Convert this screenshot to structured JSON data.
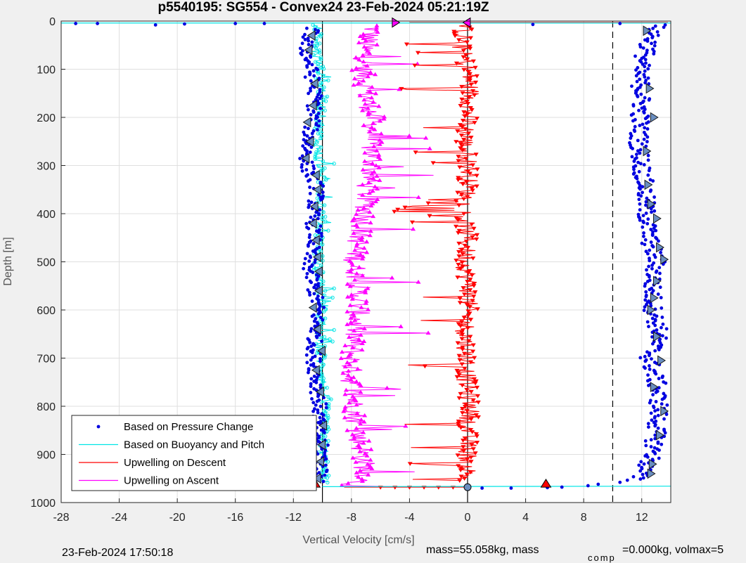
{
  "chart_data": {
    "type": "scatter",
    "title": "p5540195: SG554 - Convex24 23-Feb-2024 05:21:19Z",
    "xlabel": "Vertical Velocity [cm/s]",
    "ylabel": "Depth [m]",
    "xlim": [
      -28,
      14
    ],
    "ylim": [
      0,
      1000
    ],
    "y_reversed": true,
    "grid": true,
    "xticks": [
      "-28",
      "-24",
      "-20",
      "-16",
      "-12",
      "-8",
      "-4",
      "0",
      "4",
      "8",
      "12"
    ],
    "yticks": [
      "0",
      "100",
      "200",
      "300",
      "400",
      "500",
      "600",
      "700",
      "800",
      "900",
      "1000"
    ],
    "reference_lines": {
      "solid_x": [
        -10,
        0
      ],
      "dashed_x": [
        10
      ]
    },
    "legend_location": "bottom-left",
    "series": [
      {
        "name": "Based on Pressure Change",
        "style": "dots",
        "color": "#0000e0",
        "descent": {
          "depth": [
            5,
            50,
            100,
            150,
            200,
            250,
            300,
            350,
            400,
            450,
            500,
            550,
            600,
            650,
            700,
            750,
            800,
            850,
            900,
            950
          ],
          "velocity": [
            -10.5,
            -11.2,
            -10.8,
            -10.5,
            -10.6,
            -11.0,
            -11.1,
            -10.3,
            -10.7,
            -10.5,
            -11.0,
            -10.6,
            -10.3,
            -10.5,
            -10.6,
            -10.4,
            -10.2,
            -10.3,
            -10.0,
            -10.1
          ]
        },
        "ascent": {
          "depth": [
            960,
            940,
            900,
            850,
            800,
            750,
            700,
            650,
            600,
            550,
            500,
            450,
            400,
            350,
            300,
            250,
            200,
            150,
            100,
            50,
            10
          ],
          "velocity": [
            11.0,
            12.0,
            12.8,
            13.0,
            13.2,
            13.0,
            12.5,
            13.2,
            12.8,
            12.7,
            13.0,
            12.5,
            12.3,
            12.2,
            12.0,
            11.8,
            11.9,
            12.0,
            11.8,
            12.5,
            13.0
          ]
        },
        "surface": {
          "depth": [
            5,
            5,
            8,
            6,
            5,
            5,
            7,
            5
          ],
          "velocity": [
            -27,
            -25.5,
            -21.5,
            -19.5,
            -16,
            -14,
            4.5,
            10.5
          ]
        },
        "bottom": {
          "depth": [
            970,
            970,
            969,
            968,
            965,
            962,
            958
          ],
          "velocity": [
            1,
            3,
            5.5,
            6.5,
            8.3,
            9.0,
            10.5
          ]
        }
      },
      {
        "name": "Based on Buoyancy and Pitch",
        "style": "line+markers",
        "color": "#00e5e5",
        "descent": {
          "depth": [
            5,
            50,
            100,
            150,
            200,
            250,
            300,
            350,
            400,
            450,
            500,
            550,
            600,
            650,
            700,
            750,
            800,
            850,
            900,
            950
          ],
          "velocity": [
            -10.3,
            -10.5,
            -10.2,
            -10.0,
            -10.1,
            -10.3,
            -10.2,
            -10.0,
            -10.1,
            -10.2,
            -10.3,
            -10.1,
            -10.0,
            -10.2,
            -10.1,
            -10.0,
            -9.9,
            -9.9,
            -9.9,
            -9.9
          ]
        },
        "spike_ends": [
          -9.4,
          -9.6,
          -9.2,
          -9.5,
          -9.3
        ],
        "bottom_line": {
          "depth": [
            967,
            966
          ],
          "velocity": [
            -10,
            14
          ]
        }
      },
      {
        "name": "Upwelling on Descent",
        "style": "line+down-triangles",
        "color": "#ff0000",
        "depth": [
          5,
          50,
          100,
          150,
          200,
          250,
          300,
          350,
          400,
          450,
          500,
          550,
          600,
          650,
          700,
          750,
          800,
          850,
          900,
          950,
          968
        ],
        "velocity": [
          -0.2,
          -0.5,
          0.0,
          0.2,
          0.0,
          -0.2,
          0.1,
          0.0,
          -0.3,
          0.0,
          -0.2,
          0.1,
          0.0,
          -0.2,
          0.0,
          -0.1,
          0.2,
          0.0,
          0.0,
          0.0,
          -3.0
        ],
        "amplitude": 1.4
      },
      {
        "name": "Upwelling on Ascent",
        "style": "line+up-triangles",
        "color": "#ff00ff",
        "depth": [
          10,
          50,
          100,
          150,
          200,
          250,
          300,
          350,
          400,
          450,
          500,
          550,
          600,
          650,
          700,
          750,
          800,
          850,
          900,
          950,
          968
        ],
        "velocity": [
          -6.5,
          -7.0,
          -7.2,
          -7.0,
          -6.5,
          -6.7,
          -6.5,
          -7.0,
          -7.0,
          -7.5,
          -7.8,
          -7.5,
          -7.5,
          -7.8,
          -8.0,
          -8.0,
          -7.8,
          -7.6,
          -7.2,
          -7.0,
          -8.5
        ],
        "amplitude": 1.6
      }
    ],
    "markers": [
      {
        "kind": "triangle-left",
        "color": "#1a1a1a",
        "fill": "#6a8ec0",
        "velocity": [
          -10.7,
          -10.9,
          -10.5,
          -10.6,
          -11.0,
          -10.8,
          -11.1,
          -10.4,
          -10.3,
          -10.5,
          -10.6,
          -10.4,
          -10.3,
          -10.2,
          -10.2,
          -10.6,
          -10.3,
          -10.0,
          -10.4,
          -10.1,
          -9.9,
          -10.0,
          -10.1,
          -10.3
        ],
        "depth": [
          30,
          60,
          130,
          175,
          210,
          250,
          285,
          320,
          350,
          385,
          420,
          455,
          490,
          520,
          560,
          595,
          640,
          685,
          725,
          770,
          840,
          880,
          915,
          950
        ]
      },
      {
        "kind": "triangle-right",
        "color": "#1a1a1a",
        "fill": "#6a8ec0",
        "velocity": [
          12.3,
          12.5,
          12.8,
          12.3,
          12.4,
          12.6,
          13.0,
          13.2,
          13.5,
          13.0,
          12.8,
          12.6,
          13.0,
          13.3,
          12.8,
          13.5,
          13.2,
          12.7,
          12.6
        ],
        "depth": [
          20,
          140,
          200,
          270,
          340,
          380,
          410,
          470,
          495,
          540,
          575,
          600,
          655,
          705,
          760,
          810,
          860,
          920,
          940
        ]
      },
      {
        "kind": "triangle-up-red",
        "color": "#000",
        "fill": "#ff0000",
        "velocity": [
          -10.5,
          5.4
        ],
        "depth": [
          962,
          962
        ]
      },
      {
        "kind": "triangle-right-pink",
        "color": "#000",
        "fill": "#ff00ff",
        "velocity": [
          -5.0
        ],
        "depth": [
          3
        ]
      },
      {
        "kind": "triangle-left-pink",
        "color": "#000",
        "fill": "#ff00ff",
        "velocity": [
          0.0
        ],
        "depth": [
          3
        ]
      }
    ]
  },
  "legend": {
    "items": [
      {
        "label": "Based on Pressure Change",
        "color": "#0000e0",
        "kind": "dot"
      },
      {
        "label": "Based on Buoyancy and Pitch",
        "color": "#00e5e5",
        "kind": "line"
      },
      {
        "label": "Upwelling on Descent",
        "color": "#ff0000",
        "kind": "line"
      },
      {
        "label": "Upwelling on Ascent",
        "color": "#ff00ff",
        "kind": "line"
      }
    ]
  },
  "footer": {
    "timestamp": "23-Feb-2024 17:50:18",
    "mass_text": "mass=55.058kg, mass",
    "comp_subscript": "comp",
    "tail_text": "=0.000kg, volmax=5"
  }
}
